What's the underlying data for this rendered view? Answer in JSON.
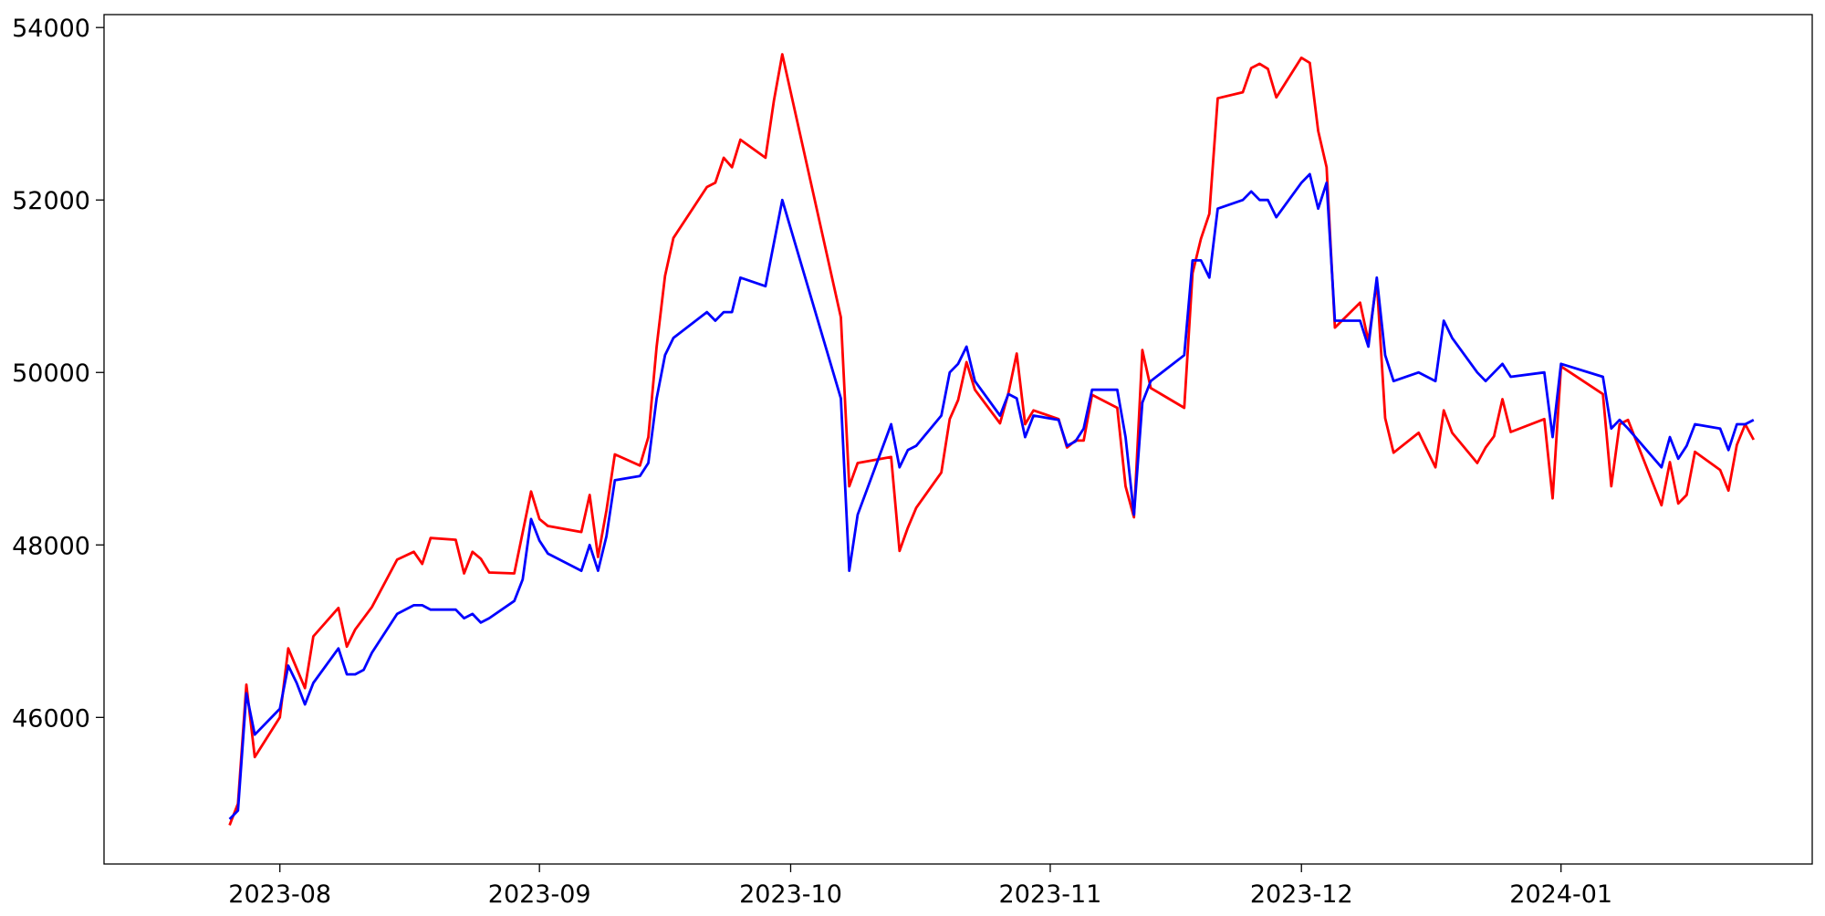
{
  "chart_data": {
    "type": "line",
    "title": "",
    "xlabel": "",
    "ylabel": "",
    "xlim": [
      "2023-07-11",
      "2024-01-31"
    ],
    "ylim": [
      44300,
      54150
    ],
    "grid": false,
    "legend": "none",
    "x_ticks": [
      "2023-08-01",
      "2023-09-01",
      "2023-10-01",
      "2023-11-01",
      "2023-12-01",
      "2024-01-01"
    ],
    "x_tick_labels": [
      "2023-08",
      "2023-09",
      "2023-10",
      "2023-11",
      "2023-12",
      "2024-01"
    ],
    "y_ticks": [
      46000,
      48000,
      50000,
      52000,
      54000
    ],
    "y_tick_labels": [
      "46000",
      "48000",
      "50000",
      "52000",
      "54000"
    ],
    "series": [
      {
        "color": "#ff0000",
        "points": [
          [
            "2023-07-26",
            44750
          ],
          [
            "2023-07-27",
            45000
          ],
          [
            "2023-07-28",
            46380
          ],
          [
            "2023-07-29",
            45540
          ],
          [
            "2023-08-01",
            46000
          ],
          [
            "2023-08-02",
            46800
          ],
          [
            "2023-08-04",
            46340
          ],
          [
            "2023-08-05",
            46940
          ],
          [
            "2023-08-08",
            47270
          ],
          [
            "2023-08-09",
            46820
          ],
          [
            "2023-08-10",
            47020
          ],
          [
            "2023-08-12",
            47280
          ],
          [
            "2023-08-15",
            47830
          ],
          [
            "2023-08-17",
            47920
          ],
          [
            "2023-08-18",
            47780
          ],
          [
            "2023-08-19",
            48080
          ],
          [
            "2023-08-22",
            48060
          ],
          [
            "2023-08-23",
            47670
          ],
          [
            "2023-08-24",
            47920
          ],
          [
            "2023-08-25",
            47840
          ],
          [
            "2023-08-26",
            47680
          ],
          [
            "2023-08-29",
            47670
          ],
          [
            "2023-08-31",
            48620
          ],
          [
            "2023-09-01",
            48300
          ],
          [
            "2023-09-02",
            48220
          ],
          [
            "2023-09-06",
            48150
          ],
          [
            "2023-09-07",
            48580
          ],
          [
            "2023-09-08",
            47860
          ],
          [
            "2023-09-09",
            48400
          ],
          [
            "2023-09-10",
            49050
          ],
          [
            "2023-09-13",
            48920
          ],
          [
            "2023-09-14",
            49250
          ],
          [
            "2023-09-15",
            50300
          ],
          [
            "2023-09-16",
            51120
          ],
          [
            "2023-09-17",
            51560
          ],
          [
            "2023-09-21",
            52150
          ],
          [
            "2023-09-22",
            52200
          ],
          [
            "2023-09-23",
            52490
          ],
          [
            "2023-09-24",
            52380
          ],
          [
            "2023-09-25",
            52700
          ],
          [
            "2023-09-28",
            52490
          ],
          [
            "2023-09-29",
            53150
          ],
          [
            "2023-09-30",
            53690
          ],
          [
            "2023-10-07",
            50640
          ],
          [
            "2023-10-08",
            48680
          ],
          [
            "2023-10-09",
            48950
          ],
          [
            "2023-10-13",
            49020
          ],
          [
            "2023-10-14",
            47930
          ],
          [
            "2023-10-15",
            48200
          ],
          [
            "2023-10-16",
            48430
          ],
          [
            "2023-10-19",
            48840
          ],
          [
            "2023-10-20",
            49460
          ],
          [
            "2023-10-21",
            49680
          ],
          [
            "2023-10-22",
            50120
          ],
          [
            "2023-10-23",
            49800
          ],
          [
            "2023-10-26",
            49410
          ],
          [
            "2023-10-27",
            49760
          ],
          [
            "2023-10-28",
            50220
          ],
          [
            "2023-10-29",
            49400
          ],
          [
            "2023-10-30",
            49560
          ],
          [
            "2023-11-02",
            49460
          ],
          [
            "2023-11-03",
            49130
          ],
          [
            "2023-11-04",
            49210
          ],
          [
            "2023-11-05",
            49210
          ],
          [
            "2023-11-06",
            49740
          ],
          [
            "2023-11-09",
            49590
          ],
          [
            "2023-11-10",
            48680
          ],
          [
            "2023-11-11",
            48320
          ],
          [
            "2023-11-12",
            50260
          ],
          [
            "2023-11-13",
            49820
          ],
          [
            "2023-11-17",
            49590
          ],
          [
            "2023-11-18",
            51150
          ],
          [
            "2023-11-19",
            51550
          ],
          [
            "2023-11-20",
            51840
          ],
          [
            "2023-11-21",
            53180
          ],
          [
            "2023-11-24",
            53250
          ],
          [
            "2023-11-25",
            53530
          ],
          [
            "2023-11-26",
            53580
          ],
          [
            "2023-11-27",
            53520
          ],
          [
            "2023-11-28",
            53190
          ],
          [
            "2023-12-01",
            53650
          ],
          [
            "2023-12-02",
            53590
          ],
          [
            "2023-12-03",
            52800
          ],
          [
            "2023-12-04",
            52380
          ],
          [
            "2023-12-05",
            50520
          ],
          [
            "2023-12-08",
            50810
          ],
          [
            "2023-12-09",
            50360
          ],
          [
            "2023-12-10",
            51060
          ],
          [
            "2023-12-11",
            49470
          ],
          [
            "2023-12-12",
            49070
          ],
          [
            "2023-12-15",
            49300
          ],
          [
            "2023-12-17",
            48900
          ],
          [
            "2023-12-18",
            49560
          ],
          [
            "2023-12-19",
            49300
          ],
          [
            "2023-12-22",
            48950
          ],
          [
            "2023-12-23",
            49130
          ],
          [
            "2023-12-24",
            49260
          ],
          [
            "2023-12-25",
            49690
          ],
          [
            "2023-12-26",
            49310
          ],
          [
            "2023-12-30",
            49460
          ],
          [
            "2023-12-31",
            48540
          ],
          [
            "2024-01-01",
            50070
          ],
          [
            "2024-01-06",
            49750
          ],
          [
            "2024-01-07",
            48680
          ],
          [
            "2024-01-08",
            49400
          ],
          [
            "2024-01-09",
            49450
          ],
          [
            "2024-01-13",
            48460
          ],
          [
            "2024-01-14",
            48960
          ],
          [
            "2024-01-15",
            48480
          ],
          [
            "2024-01-16",
            48580
          ],
          [
            "2024-01-17",
            49080
          ],
          [
            "2024-01-20",
            48870
          ],
          [
            "2024-01-21",
            48630
          ],
          [
            "2024-01-22",
            49160
          ],
          [
            "2024-01-23",
            49400
          ],
          [
            "2024-01-24",
            49220
          ]
        ]
      },
      {
        "color": "#0000ff",
        "points": [
          [
            "2023-07-26",
            44820
          ],
          [
            "2023-07-27",
            44920
          ],
          [
            "2023-07-28",
            46280
          ],
          [
            "2023-07-29",
            45800
          ],
          [
            "2023-08-01",
            46100
          ],
          [
            "2023-08-02",
            46600
          ],
          [
            "2023-08-03",
            46400
          ],
          [
            "2023-08-04",
            46150
          ],
          [
            "2023-08-05",
            46400
          ],
          [
            "2023-08-08",
            46800
          ],
          [
            "2023-08-09",
            46500
          ],
          [
            "2023-08-10",
            46500
          ],
          [
            "2023-08-11",
            46550
          ],
          [
            "2023-08-12",
            46750
          ],
          [
            "2023-08-15",
            47200
          ],
          [
            "2023-08-17",
            47300
          ],
          [
            "2023-08-18",
            47300
          ],
          [
            "2023-08-19",
            47250
          ],
          [
            "2023-08-22",
            47250
          ],
          [
            "2023-08-23",
            47150
          ],
          [
            "2023-08-24",
            47200
          ],
          [
            "2023-08-25",
            47100
          ],
          [
            "2023-08-26",
            47150
          ],
          [
            "2023-08-29",
            47350
          ],
          [
            "2023-08-30",
            47600
          ],
          [
            "2023-08-31",
            48300
          ],
          [
            "2023-09-01",
            48050
          ],
          [
            "2023-09-02",
            47900
          ],
          [
            "2023-09-06",
            47700
          ],
          [
            "2023-09-07",
            48000
          ],
          [
            "2023-09-08",
            47700
          ],
          [
            "2023-09-09",
            48100
          ],
          [
            "2023-09-10",
            48750
          ],
          [
            "2023-09-13",
            48800
          ],
          [
            "2023-09-14",
            48950
          ],
          [
            "2023-09-15",
            49700
          ],
          [
            "2023-09-16",
            50200
          ],
          [
            "2023-09-17",
            50400
          ],
          [
            "2023-09-21",
            50700
          ],
          [
            "2023-09-22",
            50600
          ],
          [
            "2023-09-23",
            50700
          ],
          [
            "2023-09-24",
            50700
          ],
          [
            "2023-09-25",
            51100
          ],
          [
            "2023-09-28",
            51000
          ],
          [
            "2023-09-30",
            52000
          ],
          [
            "2023-10-07",
            49700
          ],
          [
            "2023-10-08",
            47700
          ],
          [
            "2023-10-09",
            48350
          ],
          [
            "2023-10-13",
            49400
          ],
          [
            "2023-10-14",
            48900
          ],
          [
            "2023-10-15",
            49100
          ],
          [
            "2023-10-16",
            49150
          ],
          [
            "2023-10-19",
            49500
          ],
          [
            "2023-10-20",
            50000
          ],
          [
            "2023-10-21",
            50100
          ],
          [
            "2023-10-22",
            50300
          ],
          [
            "2023-10-23",
            49900
          ],
          [
            "2023-10-26",
            49500
          ],
          [
            "2023-10-27",
            49750
          ],
          [
            "2023-10-28",
            49700
          ],
          [
            "2023-10-29",
            49250
          ],
          [
            "2023-10-30",
            49500
          ],
          [
            "2023-11-02",
            49450
          ],
          [
            "2023-11-03",
            49150
          ],
          [
            "2023-11-04",
            49200
          ],
          [
            "2023-11-05",
            49350
          ],
          [
            "2023-11-06",
            49800
          ],
          [
            "2023-11-09",
            49800
          ],
          [
            "2023-11-10",
            49250
          ],
          [
            "2023-11-11",
            48350
          ],
          [
            "2023-11-12",
            49650
          ],
          [
            "2023-11-13",
            49900
          ],
          [
            "2023-11-17",
            50200
          ],
          [
            "2023-11-18",
            51300
          ],
          [
            "2023-11-19",
            51300
          ],
          [
            "2023-11-20",
            51100
          ],
          [
            "2023-11-21",
            51900
          ],
          [
            "2023-11-24",
            52000
          ],
          [
            "2023-11-25",
            52100
          ],
          [
            "2023-11-26",
            52000
          ],
          [
            "2023-11-27",
            52000
          ],
          [
            "2023-11-28",
            51800
          ],
          [
            "2023-12-01",
            52200
          ],
          [
            "2023-12-02",
            52300
          ],
          [
            "2023-12-03",
            51900
          ],
          [
            "2023-12-04",
            52200
          ],
          [
            "2023-12-05",
            50600
          ],
          [
            "2023-12-08",
            50600
          ],
          [
            "2023-12-09",
            50300
          ],
          [
            "2023-12-10",
            51100
          ],
          [
            "2023-12-11",
            50200
          ],
          [
            "2023-12-12",
            49900
          ],
          [
            "2023-12-15",
            50000
          ],
          [
            "2023-12-17",
            49900
          ],
          [
            "2023-12-18",
            50600
          ],
          [
            "2023-12-19",
            50400
          ],
          [
            "2023-12-22",
            50000
          ],
          [
            "2023-12-23",
            49900
          ],
          [
            "2023-12-25",
            50100
          ],
          [
            "2023-12-26",
            49950
          ],
          [
            "2023-12-30",
            50000
          ],
          [
            "2023-12-31",
            49250
          ],
          [
            "2024-01-01",
            50100
          ],
          [
            "2024-01-06",
            49950
          ],
          [
            "2024-01-07",
            49350
          ],
          [
            "2024-01-08",
            49450
          ],
          [
            "2024-01-09",
            49350
          ],
          [
            "2024-01-13",
            48900
          ],
          [
            "2024-01-14",
            49250
          ],
          [
            "2024-01-15",
            49000
          ],
          [
            "2024-01-16",
            49150
          ],
          [
            "2024-01-17",
            49400
          ],
          [
            "2024-01-20",
            49350
          ],
          [
            "2024-01-21",
            49100
          ],
          [
            "2024-01-22",
            49400
          ],
          [
            "2024-01-23",
            49400
          ],
          [
            "2024-01-24",
            49450
          ]
        ]
      }
    ]
  }
}
